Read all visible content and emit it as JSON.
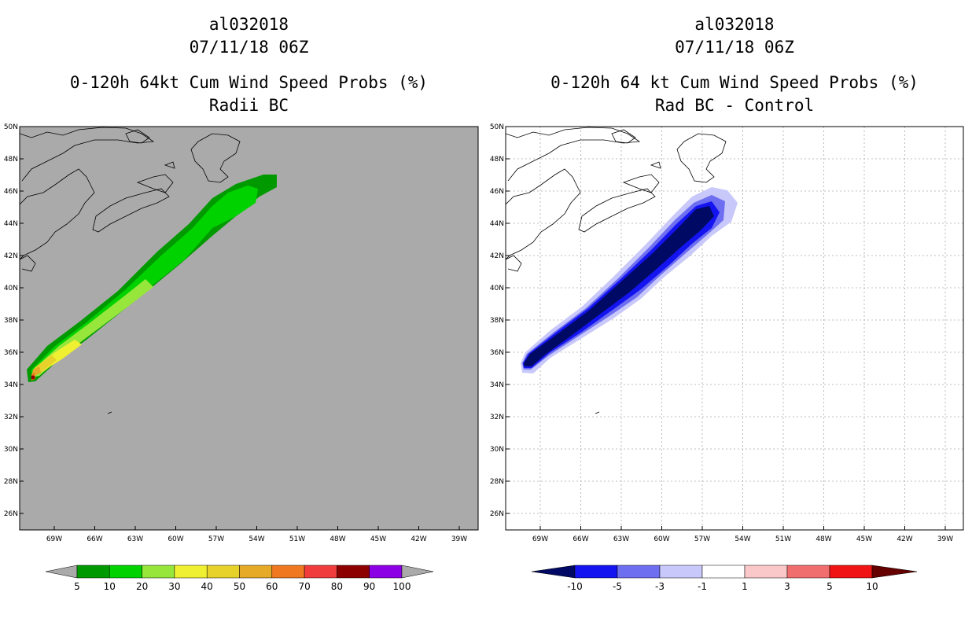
{
  "left_panel": {
    "storm_id": "al032018",
    "datetime": "07/11/18 06Z",
    "product": "0-120h 64kt Cum Wind Speed Probs (%)",
    "subtitle": "Radii BC",
    "background_color": "#aaaaaa",
    "colorbar": {
      "labels": [
        "5",
        "10",
        "20",
        "30",
        "40",
        "50",
        "60",
        "70",
        "80",
        "90",
        "100"
      ],
      "colors": [
        "#009a00",
        "#00d200",
        "#96e63c",
        "#f0f032",
        "#e6d22a",
        "#e6aa28",
        "#f07820",
        "#f03c3c",
        "#8c0000",
        "#8c00e6"
      ],
      "arrow_color": "#aaaaaa"
    }
  },
  "right_panel": {
    "storm_id": "al032018",
    "datetime": "07/11/18 06Z",
    "product": "0-120h 64 kt Cum Wind Speed Probs (%)",
    "subtitle": "Rad BC - Control",
    "background_color": "#ffffff",
    "colorbar": {
      "labels": [
        "-10",
        "-5",
        "-3",
        "-1",
        "1",
        "3",
        "5",
        "10"
      ],
      "colors": [
        "#000a64",
        "#1414f0",
        "#6e6ef0",
        "#c8c8fa",
        "#ffffff",
        "#fac8c8",
        "#f06e6e",
        "#f01414",
        "#640000"
      ]
    }
  },
  "map": {
    "lat_labels": [
      "50N",
      "48N",
      "46N",
      "44N",
      "42N",
      "40N",
      "38N",
      "36N",
      "34N",
      "32N",
      "30N",
      "28N",
      "26N"
    ],
    "lon_labels": [
      "69W",
      "66W",
      "63W",
      "60W",
      "57W",
      "54W",
      "51W",
      "48W",
      "45W",
      "42W",
      "39W"
    ]
  }
}
